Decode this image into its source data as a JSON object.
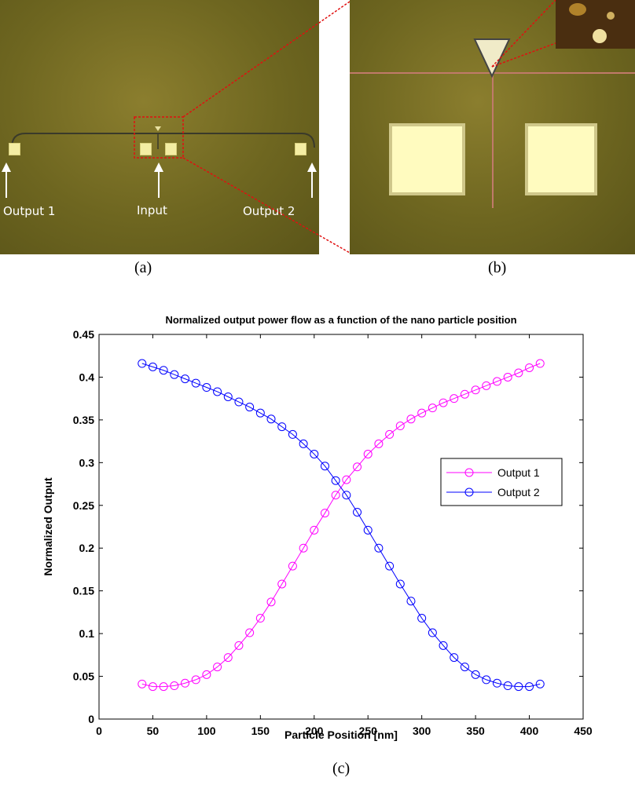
{
  "panels": {
    "a_label": "(a)",
    "b_label": "(b)",
    "c_label": "(c)"
  },
  "micrograph_a": {
    "annotations": [
      "Output 1",
      "Input",
      "Output 2"
    ]
  },
  "chart_data": {
    "type": "line",
    "title": "Normalized output power flow as a function of the nano particle position",
    "xlabel": "Particle Position [nm]",
    "ylabel": "Normalized Output",
    "xlim": [
      0,
      450
    ],
    "ylim": [
      0,
      0.45
    ],
    "xticks": [
      0,
      50,
      100,
      150,
      200,
      250,
      300,
      350,
      400,
      450
    ],
    "yticks": [
      0,
      0.05,
      0.1,
      0.15,
      0.2,
      0.25,
      0.3,
      0.35,
      0.4,
      0.45
    ],
    "ytick_labels": [
      "0",
      "0.05",
      "0.1",
      "0.15",
      "0.2",
      "0.25",
      "0.3",
      "0.35",
      "0.4",
      "0.45"
    ],
    "grid": false,
    "legend_position": "right",
    "x": [
      40,
      50,
      60,
      70,
      80,
      90,
      100,
      110,
      120,
      130,
      140,
      150,
      160,
      170,
      180,
      190,
      200,
      210,
      220,
      230,
      240,
      250,
      260,
      270,
      280,
      290,
      300,
      310,
      320,
      330,
      340,
      350,
      360,
      370,
      380,
      390,
      400,
      410
    ],
    "series": [
      {
        "name": "Output 1",
        "color": "#ff00ff",
        "marker": "circle",
        "values": [
          0.041,
          0.038,
          0.038,
          0.039,
          0.042,
          0.046,
          0.052,
          0.061,
          0.072,
          0.086,
          0.101,
          0.118,
          0.137,
          0.158,
          0.179,
          0.2,
          0.221,
          0.241,
          0.262,
          0.28,
          0.295,
          0.31,
          0.322,
          0.333,
          0.343,
          0.351,
          0.358,
          0.364,
          0.37,
          0.375,
          0.38,
          0.385,
          0.39,
          0.395,
          0.4,
          0.405,
          0.411,
          0.416
        ]
      },
      {
        "name": "Output 2",
        "color": "#0000ff",
        "marker": "circle",
        "values": [
          0.416,
          0.412,
          0.408,
          0.403,
          0.398,
          0.393,
          0.388,
          0.383,
          0.377,
          0.371,
          0.365,
          0.358,
          0.351,
          0.342,
          0.333,
          0.322,
          0.31,
          0.296,
          0.279,
          0.262,
          0.242,
          0.221,
          0.2,
          0.179,
          0.158,
          0.138,
          0.118,
          0.101,
          0.086,
          0.072,
          0.061,
          0.052,
          0.046,
          0.042,
          0.039,
          0.038,
          0.038,
          0.041
        ]
      }
    ]
  }
}
